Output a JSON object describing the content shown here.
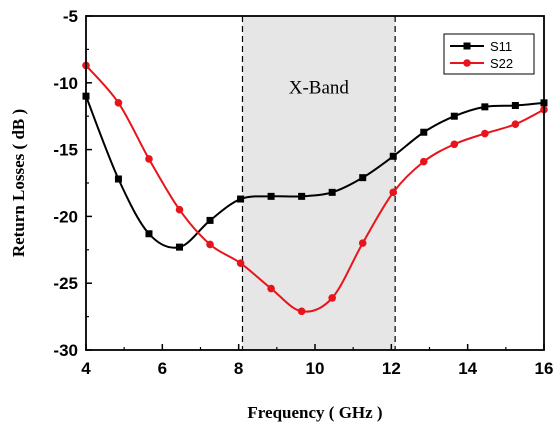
{
  "chart_data": {
    "type": "line",
    "title": "",
    "xlabel": "Frequency ( GHz )",
    "ylabel": "Return Losses ( dB )",
    "xlim": [
      4,
      16
    ],
    "ylim": [
      -30,
      -5
    ],
    "xticks": [
      4,
      6,
      8,
      10,
      12,
      14,
      16
    ],
    "yticks": [
      -5,
      -10,
      -15,
      -20,
      -25,
      -30
    ],
    "grid": false,
    "legend_position": "top-right",
    "shaded_region": {
      "label": "X-Band",
      "x_start": 8.1,
      "x_end": 12.1,
      "fill": "#e6e6e6"
    },
    "series": [
      {
        "name": "S11",
        "color": "#000000",
        "marker": "square",
        "x": [
          4.0,
          4.85,
          5.65,
          6.45,
          7.25,
          8.05,
          8.85,
          9.65,
          10.45,
          11.25,
          12.05,
          12.85,
          13.65,
          14.45,
          15.25,
          16.0
        ],
        "y": [
          -11.0,
          -17.2,
          -21.3,
          -22.3,
          -20.3,
          -18.7,
          -18.5,
          -18.5,
          -18.2,
          -17.1,
          -15.5,
          -13.7,
          -12.5,
          -11.8,
          -11.7,
          -11.5
        ]
      },
      {
        "name": "S22",
        "color": "#e8141b",
        "marker": "circle",
        "x": [
          4.0,
          4.85,
          5.65,
          6.45,
          7.25,
          8.05,
          8.85,
          9.65,
          10.45,
          11.25,
          12.05,
          12.85,
          13.65,
          14.45,
          15.25,
          16.0
        ],
        "y": [
          -8.7,
          -11.5,
          -15.7,
          -19.5,
          -22.1,
          -23.5,
          -25.4,
          -27.1,
          -26.1,
          -22.0,
          -18.2,
          -15.9,
          -14.6,
          -13.8,
          -13.1,
          -12.0
        ]
      }
    ]
  }
}
